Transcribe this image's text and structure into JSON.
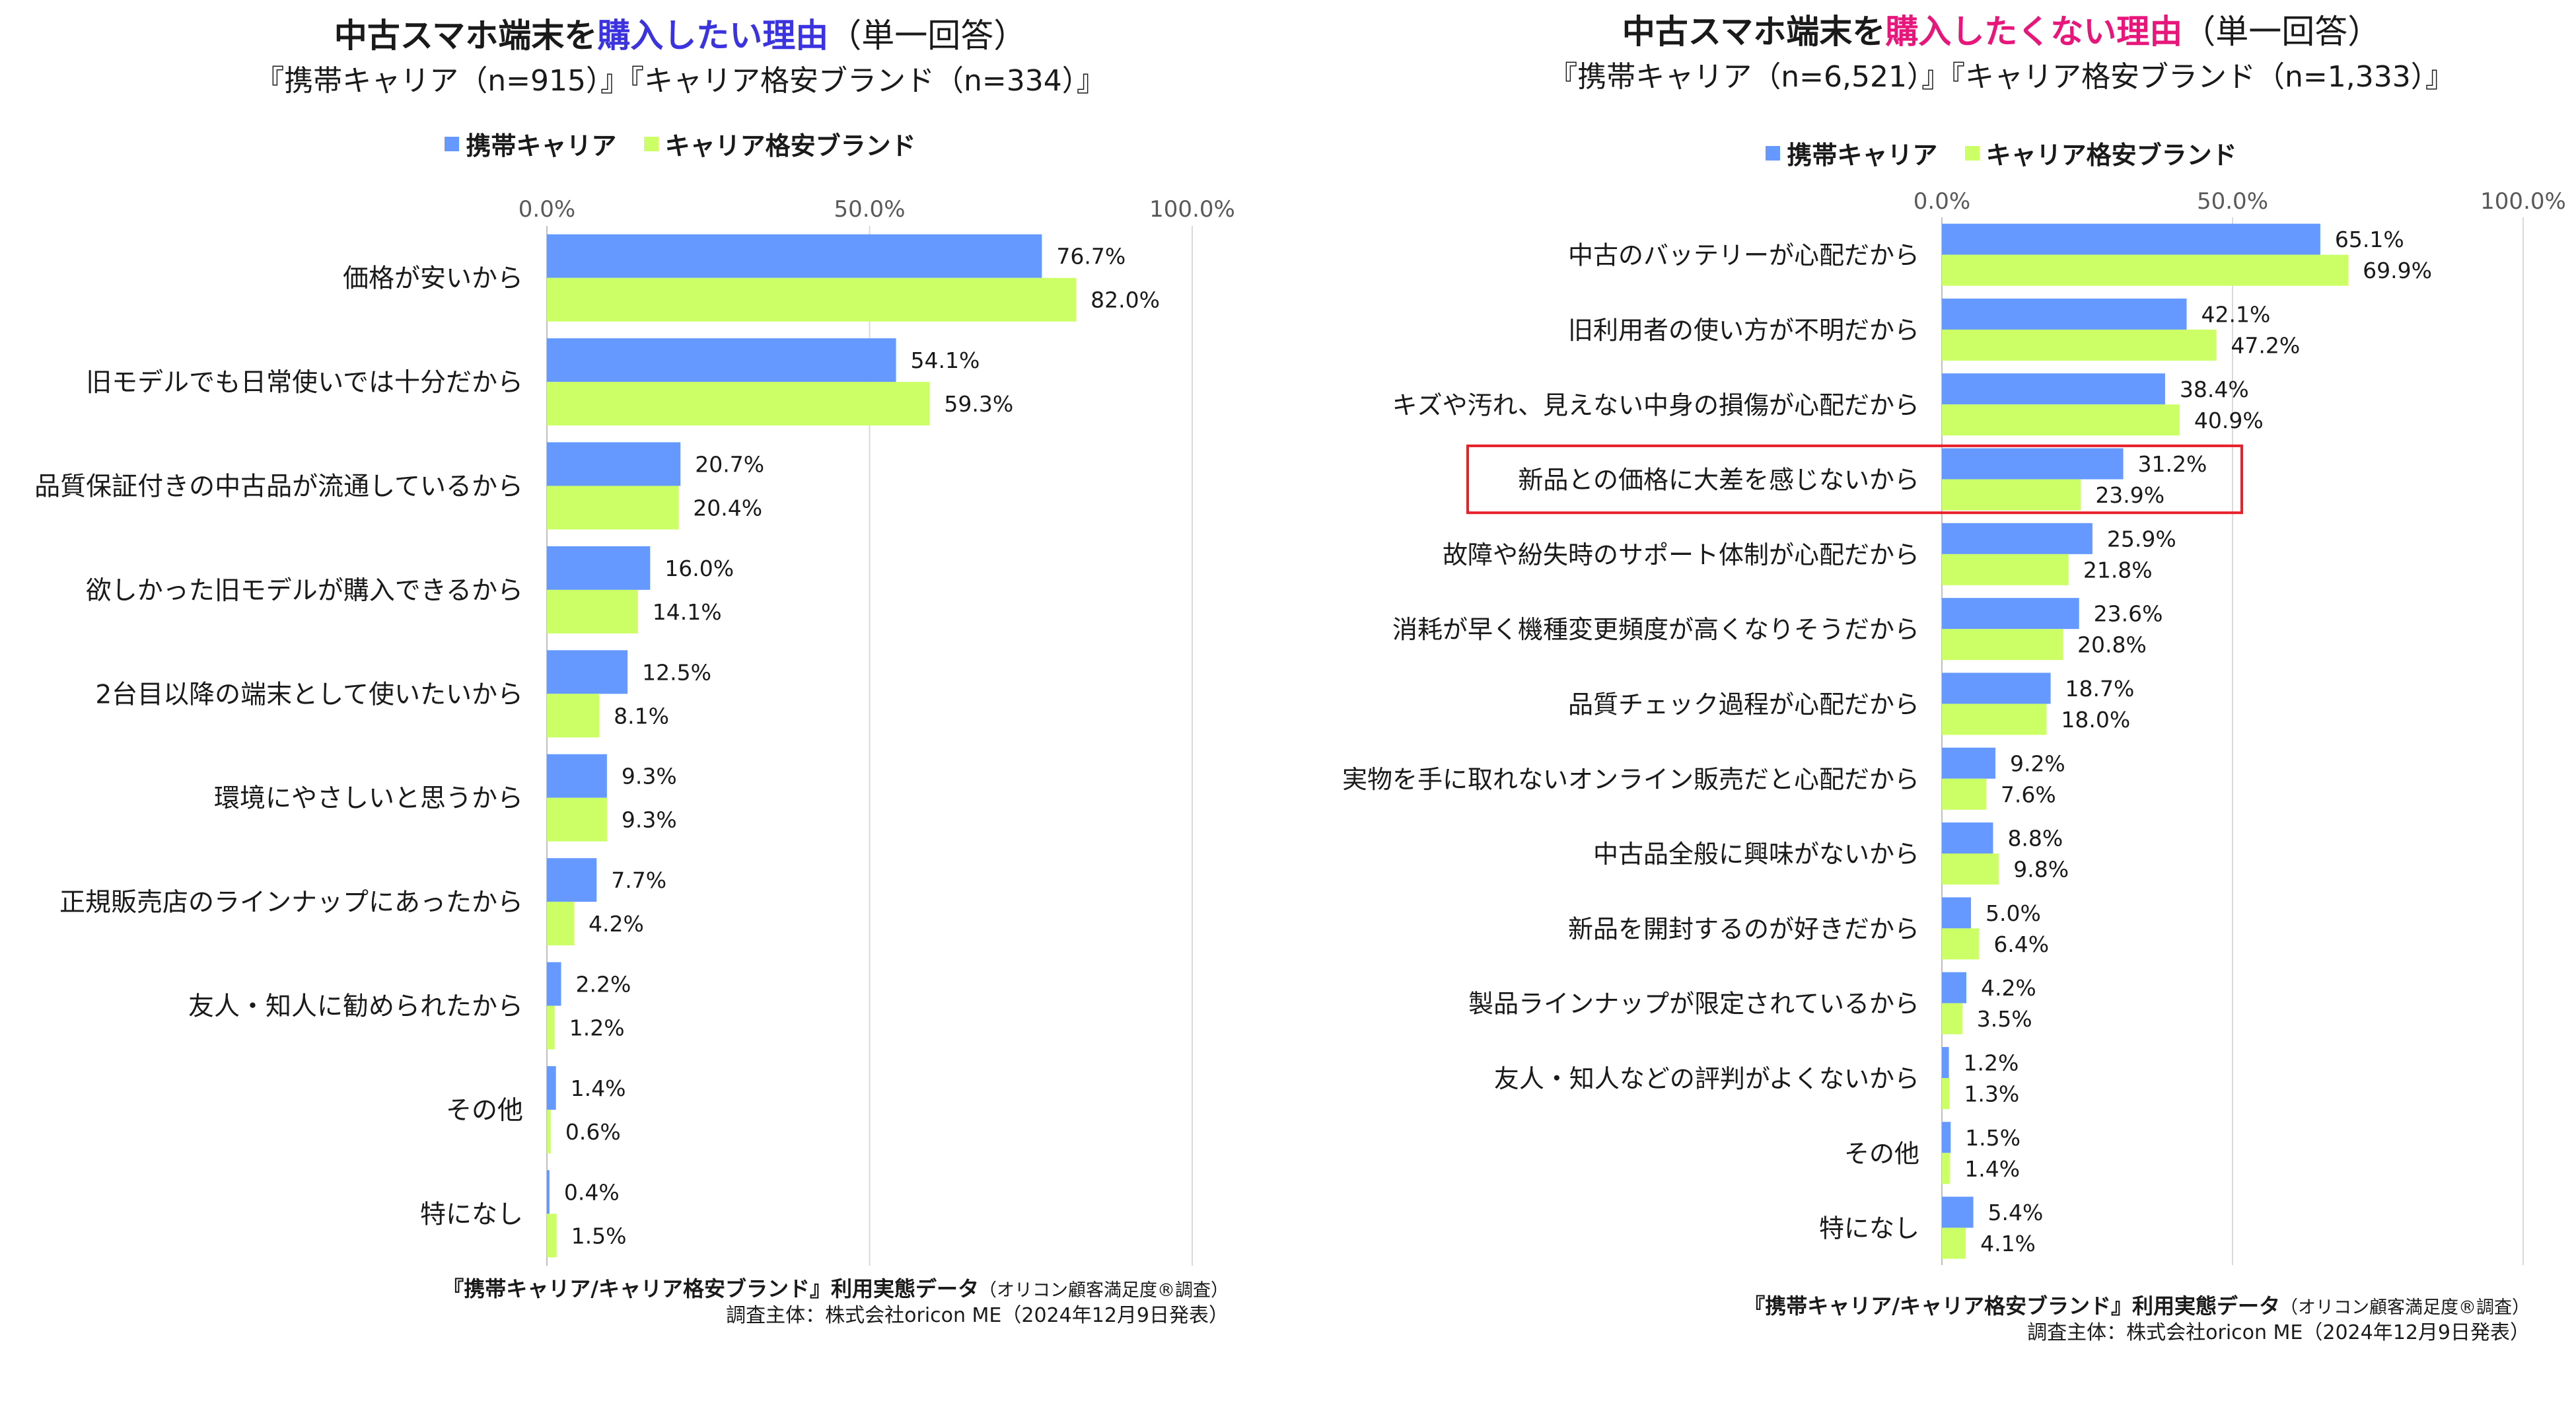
{
  "colors": {
    "carrier": "#6699ff",
    "budget": "#ccff66",
    "highlight_box": "#e8202a",
    "grid": "#d9d9d9"
  },
  "legend": {
    "carrier": "携帯キャリア",
    "budget": "キャリア格安ブランド"
  },
  "left": {
    "title_a": "中古スマホ端末を",
    "title_highlight": "購入したい理由",
    "title_b": "（単一回答）",
    "subtitle": "『携帯キャリア（n=915）』『キャリア格安ブランド（n=334）』",
    "source_line1": "『携帯キャリア/キャリア格安ブランド』利用実態データ",
    "source_line1_note": "（オリコン顧客満足度®調査）",
    "source_line2": "調査主体：株式会社oricon ME（2024年12月9日発表）"
  },
  "right": {
    "title_a": "中古スマホ端末を",
    "title_highlight": "購入したくない理由",
    "title_b": "（単一回答）",
    "subtitle": "『携帯キャリア（n=6,521）』『キャリア格安ブランド（n=1,333）』",
    "source_line1": "『携帯キャリア/キャリア格安ブランド』利用実態データ",
    "source_line1_note": "（オリコン顧客満足度®調査）",
    "source_line2": "調査主体：株式会社oricon ME（2024年12月9日発表）"
  },
  "chart_data": [
    {
      "type": "bar",
      "orientation": "horizontal",
      "title": "中古スマホ端末を購入したい理由（単一回答）",
      "x_ticks": [
        "0.0%",
        "50.0%",
        "100.0%"
      ],
      "xlim": [
        0,
        100
      ],
      "grid": true,
      "legend_position": "top",
      "categories": [
        "価格が安いから",
        "旧モデルでも日常使いでは十分だから",
        "品質保証付きの中古品が流通しているから",
        "欲しかった旧モデルが購入できるから",
        "2台目以降の端末として使いたいから",
        "環境にやさしいと思うから",
        "正規販売店のラインナップにあったから",
        "友人・知人に勧められたから",
        "その他",
        "特になし"
      ],
      "series": [
        {
          "name": "携帯キャリア",
          "values": [
            76.7,
            54.1,
            20.7,
            16.0,
            12.5,
            9.3,
            7.7,
            2.2,
            1.4,
            0.4
          ]
        },
        {
          "name": "キャリア格安ブランド",
          "values": [
            82.0,
            59.3,
            20.4,
            14.1,
            8.1,
            9.3,
            4.2,
            1.2,
            0.6,
            1.5
          ]
        }
      ]
    },
    {
      "type": "bar",
      "orientation": "horizontal",
      "title": "中古スマホ端末を購入したくない理由（単一回答）",
      "x_ticks": [
        "0.0%",
        "50.0%",
        "100.0%"
      ],
      "xlim": [
        0,
        100
      ],
      "grid": true,
      "legend_position": "top",
      "highlighted_category": "新品との価格に大差を感じないから",
      "categories": [
        "中古のバッテリーが心配だから",
        "旧利用者の使い方が不明だから",
        "キズや汚れ、見えない中身の損傷が心配だから",
        "新品との価格に大差を感じないから",
        "故障や紛失時のサポート体制が心配だから",
        "消耗が早く機種変更頻度が高くなりそうだから",
        "品質チェック過程が心配だから",
        "実物を手に取れないオンライン販売だと心配だから",
        "中古品全般に興味がないから",
        "新品を開封するのが好きだから",
        "製品ラインナップが限定されているから",
        "友人・知人などの評判がよくないから",
        "その他",
        "特になし"
      ],
      "series": [
        {
          "name": "携帯キャリア",
          "values": [
            65.1,
            42.1,
            38.4,
            31.2,
            25.9,
            23.6,
            18.7,
            9.2,
            8.8,
            5.0,
            4.2,
            1.2,
            1.5,
            5.4
          ]
        },
        {
          "name": "キャリア格安ブランド",
          "values": [
            69.9,
            47.2,
            40.9,
            23.9,
            21.8,
            20.8,
            18.0,
            7.6,
            9.8,
            6.4,
            3.5,
            1.3,
            1.4,
            4.1
          ]
        }
      ]
    }
  ]
}
